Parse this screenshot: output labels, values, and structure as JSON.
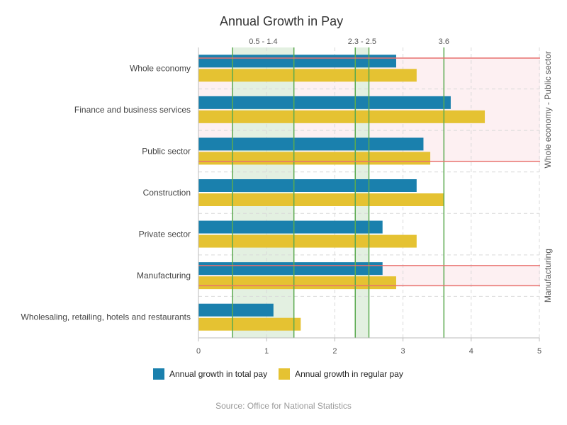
{
  "chart_data": {
    "type": "bar",
    "orientation": "horizontal",
    "title": "Annual Growth in Pay",
    "categories": [
      "Whole economy",
      "Finance and business services",
      "Public sector",
      "Construction",
      "Private sector",
      "Manufacturing",
      "Wholesaling, retailing, hotels and restaurants"
    ],
    "series": [
      {
        "name": "Annual growth in total pay",
        "color": "#1a80ad",
        "values": [
          2.9,
          3.7,
          3.3,
          3.2,
          2.7,
          2.7,
          1.1
        ]
      },
      {
        "name": "Annual growth in regular pay",
        "color": "#e5c232",
        "values": [
          3.2,
          4.2,
          3.4,
          3.6,
          3.2,
          2.9,
          1.5
        ]
      }
    ],
    "xlim": [
      0,
      5
    ],
    "x_ticks": [
      "0",
      "1",
      "2",
      "3",
      "4",
      "5"
    ],
    "grid": true,
    "x_bands": [
      {
        "label": "0.5 - 1.4",
        "from": 0.5,
        "to": 1.4,
        "color": "#e3f0e1",
        "line_color": "#5aaa4f"
      },
      {
        "label": "2.3 - 2.5",
        "from": 2.3,
        "to": 2.5,
        "color": "#e3f0e1",
        "line_color": "#5aaa4f"
      }
    ],
    "x_lines": [
      {
        "label": "3.6",
        "value": 3.6,
        "color": "#5aaa4f"
      }
    ],
    "y_bands": [
      {
        "label": "Whole economy - Public sector",
        "from_category": "Whole economy",
        "to_category": "Public sector",
        "color": "#fdf0f2",
        "line_color": "#e8716e"
      },
      {
        "label": "Manufacturing",
        "from_category": "Manufacturing",
        "to_category": "Manufacturing",
        "color": "#fdf0f2",
        "line_color": "#e8716e"
      }
    ],
    "legend_position": "bottom"
  },
  "source": "Source: Office for National Statistics"
}
